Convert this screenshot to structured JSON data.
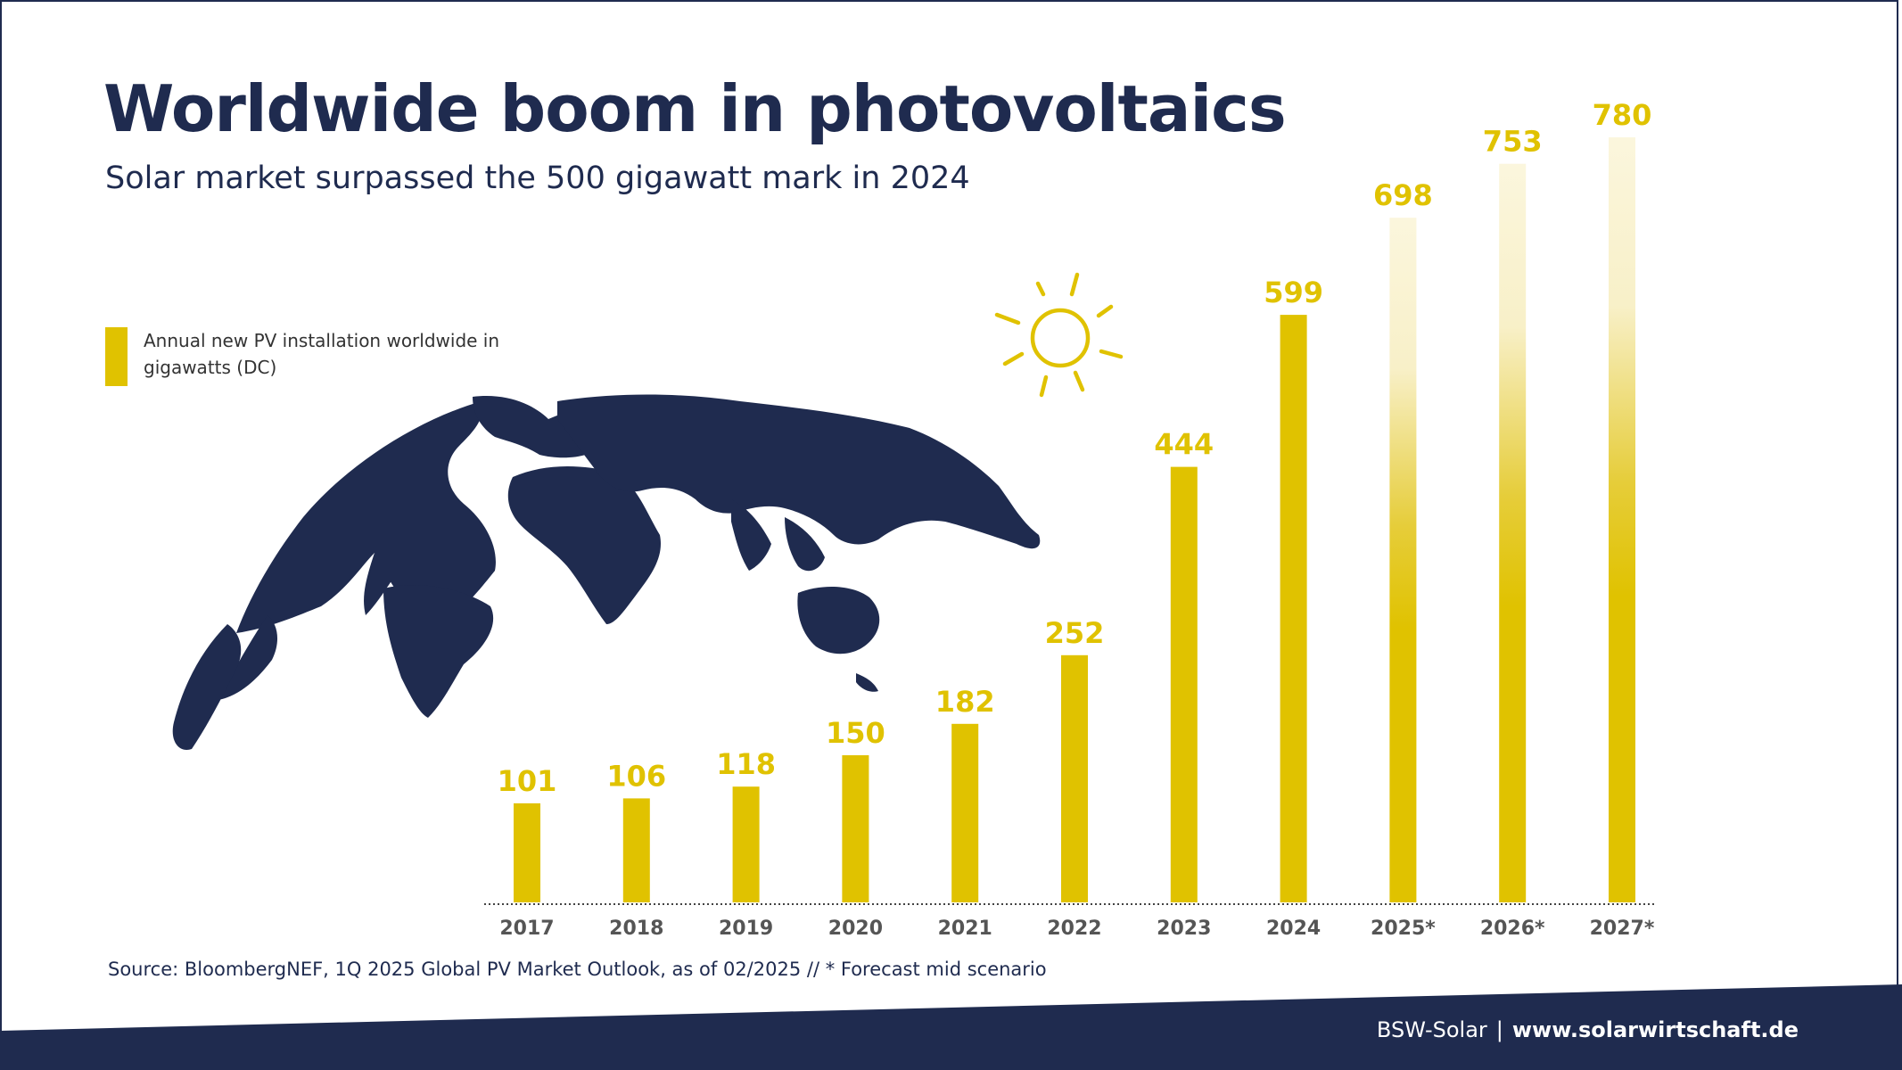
{
  "header": {
    "title": "Worldwide boom in photovoltaics",
    "subtitle": "Solar market surpassed the 500 gigawatt mark in 2024"
  },
  "legend": {
    "text": "Annual new PV installation worldwide in gigawatts (DC)"
  },
  "source_note": "Source: BloombergNEF, 1Q 2025 Global PV Market Outlook, as of 02/2025 //  * Forecast mid scenario",
  "footer": {
    "org": "BSW-Solar",
    "separator": "|",
    "url": "www.solarwirtschaft.de"
  },
  "colors": {
    "bar": "#e0c200",
    "navy": "#1f2b4f",
    "forecast_fade": "#fbf6dd"
  },
  "icons": [
    "sun-icon",
    "globe-map"
  ],
  "chart_data": {
    "type": "bar",
    "title": "Worldwide boom in photovoltaics",
    "subtitle": "Solar market surpassed the 500 gigawatt mark in 2024",
    "categories": [
      "2017",
      "2018",
      "2019",
      "2020",
      "2021",
      "2022",
      "2023",
      "2024",
      "2025*",
      "2026*",
      "2027*"
    ],
    "series": [
      {
        "name": "Annual new PV installation worldwide in gigawatts (DC)",
        "values": [
          101,
          106,
          118,
          150,
          182,
          252,
          444,
          599,
          698,
          753,
          780
        ]
      }
    ],
    "forecast": [
      false,
      false,
      false,
      false,
      false,
      false,
      false,
      false,
      true,
      true,
      true
    ],
    "ylim": [
      0,
      780
    ],
    "grid": false,
    "legend_position": "left",
    "xlabel": "",
    "ylabel": ""
  }
}
